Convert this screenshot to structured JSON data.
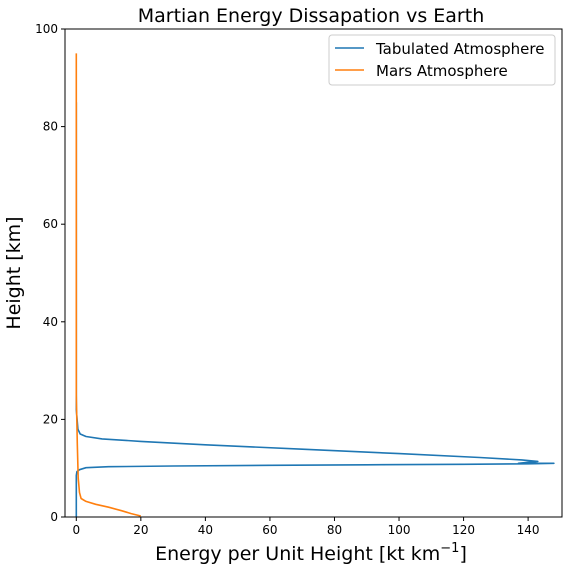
{
  "chart_data": {
    "type": "line",
    "title": "Martian Energy Dissapation vs Earth",
    "xlabel": "Energy per Unit Height [kt km",
    "xlabel_sup": "−1",
    "xlabel_end": "]",
    "ylabel": "Height [km]",
    "xlim": [
      -3.5,
      150.5
    ],
    "ylim": [
      0,
      100
    ],
    "xticks": [
      0,
      20,
      40,
      60,
      80,
      100,
      120,
      140
    ],
    "yticks": [
      0,
      20,
      40,
      60,
      80,
      100
    ],
    "grid": false,
    "legend_position": "top-right",
    "series": [
      {
        "name": "Tabulated Atmosphere",
        "color": "#1f77b4",
        "points": [
          [
            0,
            85
          ],
          [
            0,
            70
          ],
          [
            0,
            50
          ],
          [
            0,
            30
          ],
          [
            0,
            22
          ],
          [
            0.5,
            18
          ],
          [
            1.2,
            17
          ],
          [
            3,
            16.5
          ],
          [
            8,
            16
          ],
          [
            20,
            15.5
          ],
          [
            40,
            14.8
          ],
          [
            70,
            13.9
          ],
          [
            100,
            13.0
          ],
          [
            125,
            12.2
          ],
          [
            138,
            11.7
          ],
          [
            143,
            11.4
          ],
          [
            140,
            11.2
          ],
          [
            137,
            11.0
          ],
          [
            148,
            11.0
          ],
          [
            140,
            10.9
          ],
          [
            120,
            10.8
          ],
          [
            90,
            10.7
          ],
          [
            60,
            10.6
          ],
          [
            30,
            10.45
          ],
          [
            10,
            10.3
          ],
          [
            3,
            10.1
          ],
          [
            1,
            9.7
          ],
          [
            0.2,
            9.3
          ],
          [
            0,
            8.5
          ],
          [
            0,
            5
          ],
          [
            0,
            0
          ]
        ]
      },
      {
        "name": "Mars Atmosphere",
        "color": "#ff7f0e",
        "points": [
          [
            0,
            95
          ],
          [
            0,
            80
          ],
          [
            0,
            60
          ],
          [
            0,
            40
          ],
          [
            0,
            25
          ],
          [
            0.3,
            15
          ],
          [
            0.6,
            8
          ],
          [
            1.0,
            5
          ],
          [
            1.5,
            3.8
          ],
          [
            3,
            3.2
          ],
          [
            6,
            2.6
          ],
          [
            10,
            2.0
          ],
          [
            14,
            1.3
          ],
          [
            17,
            0.7
          ],
          [
            20,
            0.2
          ]
        ]
      }
    ]
  }
}
